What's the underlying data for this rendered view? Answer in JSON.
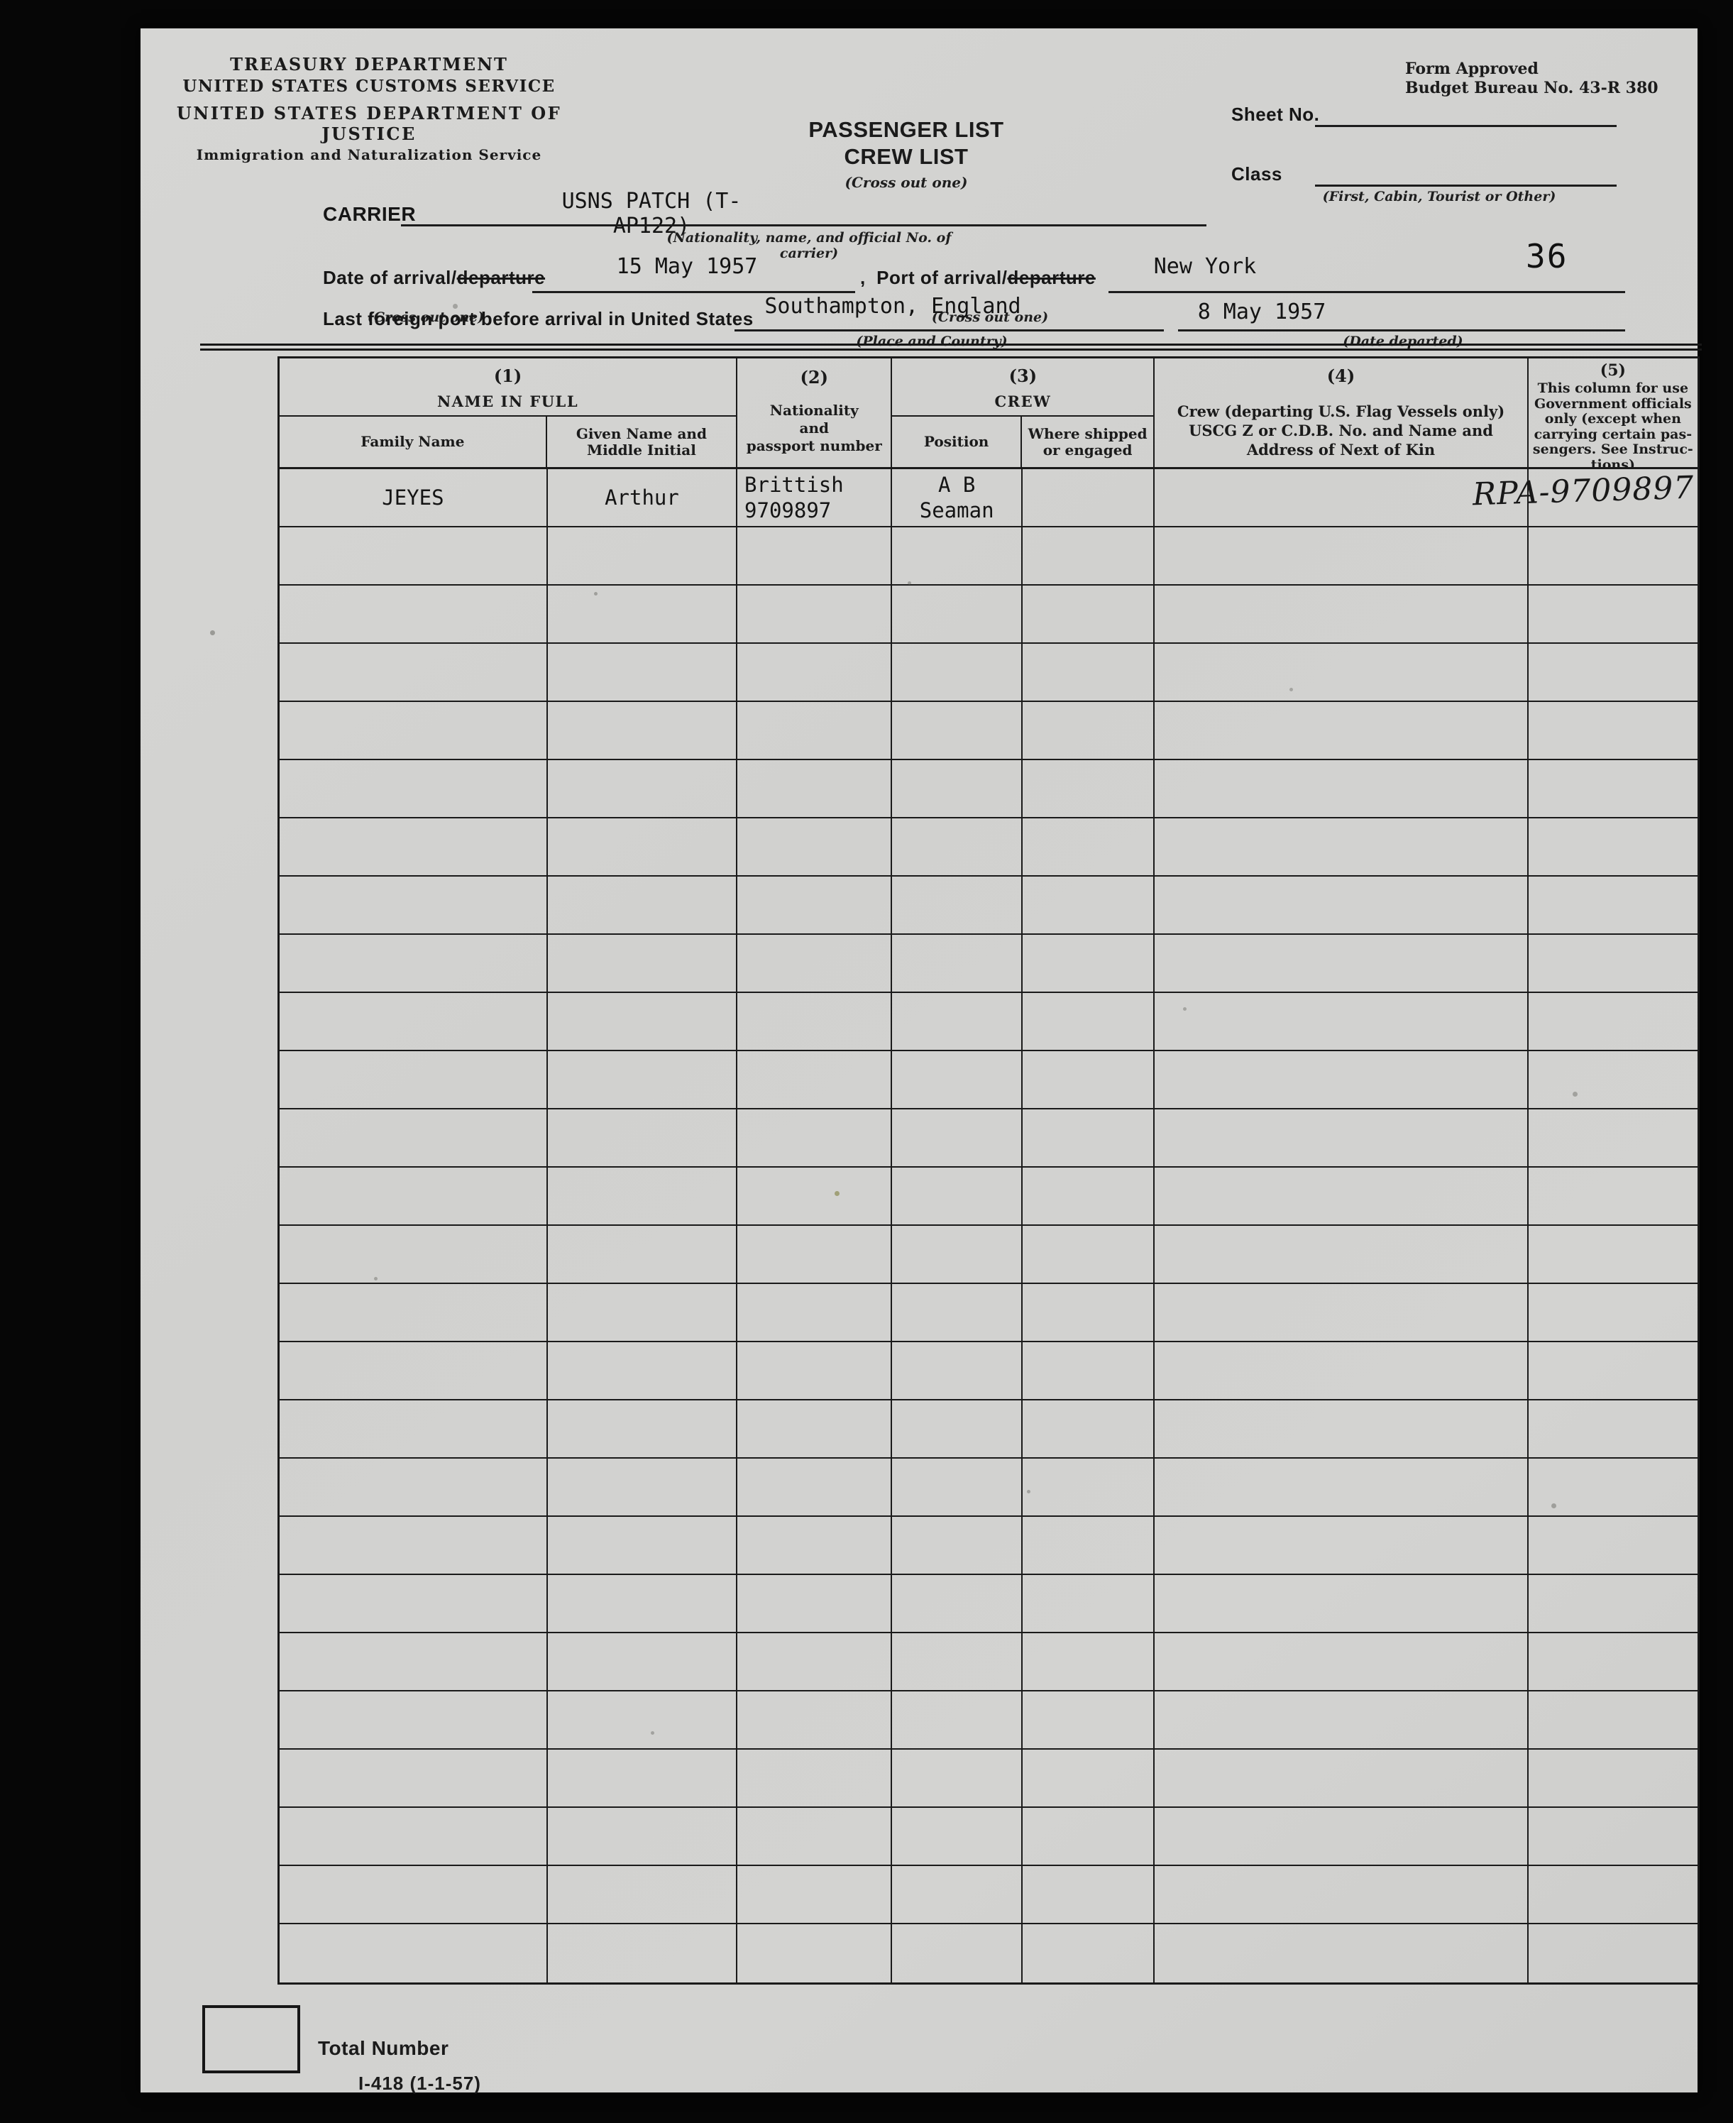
{
  "scan": {
    "page_number": "36",
    "handwritten_annotation": "RPA-9709897"
  },
  "header": {
    "treasury_line1": "TREASURY DEPARTMENT",
    "treasury_line2": "UNITED STATES CUSTOMS SERVICE",
    "justice_line1": "UNITED STATES DEPARTMENT OF JUSTICE",
    "justice_line2": "Immigration and Naturalization Service",
    "form_approved_line1": "Form Approved",
    "form_approved_line2": "Budget Bureau No. 43-R 380",
    "title_line1": "PASSENGER LIST",
    "title_line2": "CREW LIST",
    "title_note": "(Cross out one)",
    "sheet_no_label": "Sheet No.",
    "class_label": "Class",
    "class_note": "(First, Cabin, Tourist or Other)"
  },
  "fields": {
    "carrier_label": "CARRIER",
    "carrier_value": "USNS PATCH (T-AP122)",
    "carrier_note": "(Nationality, name, and official No. of carrier)",
    "date_label_prefix": "Date of arrival/",
    "date_label_crossed": "departure",
    "date_value": "15 May 1957",
    "date_note": "(Cross out one)",
    "port_label_prefix": ",  Port of arrival/",
    "port_label_crossed": "departure",
    "port_value": "New York",
    "port_note": "(Cross out one)",
    "last_port_label": "Last foreign port before arrival in United States",
    "last_port_value": "Southampton, England",
    "last_port_note": "(Place and Country)",
    "date_departed_value": "8 May 1957",
    "date_departed_note": "(Date departed)"
  },
  "table": {
    "columns": {
      "col1_num": "(1)",
      "col1_title": "NAME IN FULL",
      "col1_sub1": "Family Name",
      "col1_sub2": "Given Name and\nMiddle Initial",
      "col2_num": "(2)",
      "col2_title": "Nationality\nand\npassport number",
      "col3_num": "(3)",
      "col3_title": "CREW",
      "col3_sub1": "Position",
      "col3_sub2": "Where shipped\nor engaged",
      "col4_num": "(4)",
      "col4_title": "Crew (departing U.S. Flag Vessels only)\nUSCG  Z or C.D.B. No. and Name and\nAddress of Next of Kin",
      "col5_num": "(5)",
      "col5_title": "This column for use\nGovernment officials\nonly (except when\ncarrying certain pas-\nsengers. See Instruc-\ntions)"
    },
    "rows": [
      {
        "family_name": "JEYES",
        "given_name": "Arthur",
        "nationality": "Brittish",
        "passport_number": "9709897",
        "position": "A B\nSeaman",
        "where_shipped": "",
        "crew_uscg": "",
        "officials": ""
      }
    ],
    "empty_row_count": 25
  },
  "footer": {
    "total_number_label": "Total Number",
    "form_number": "I-418  (1-1-57)"
  }
}
